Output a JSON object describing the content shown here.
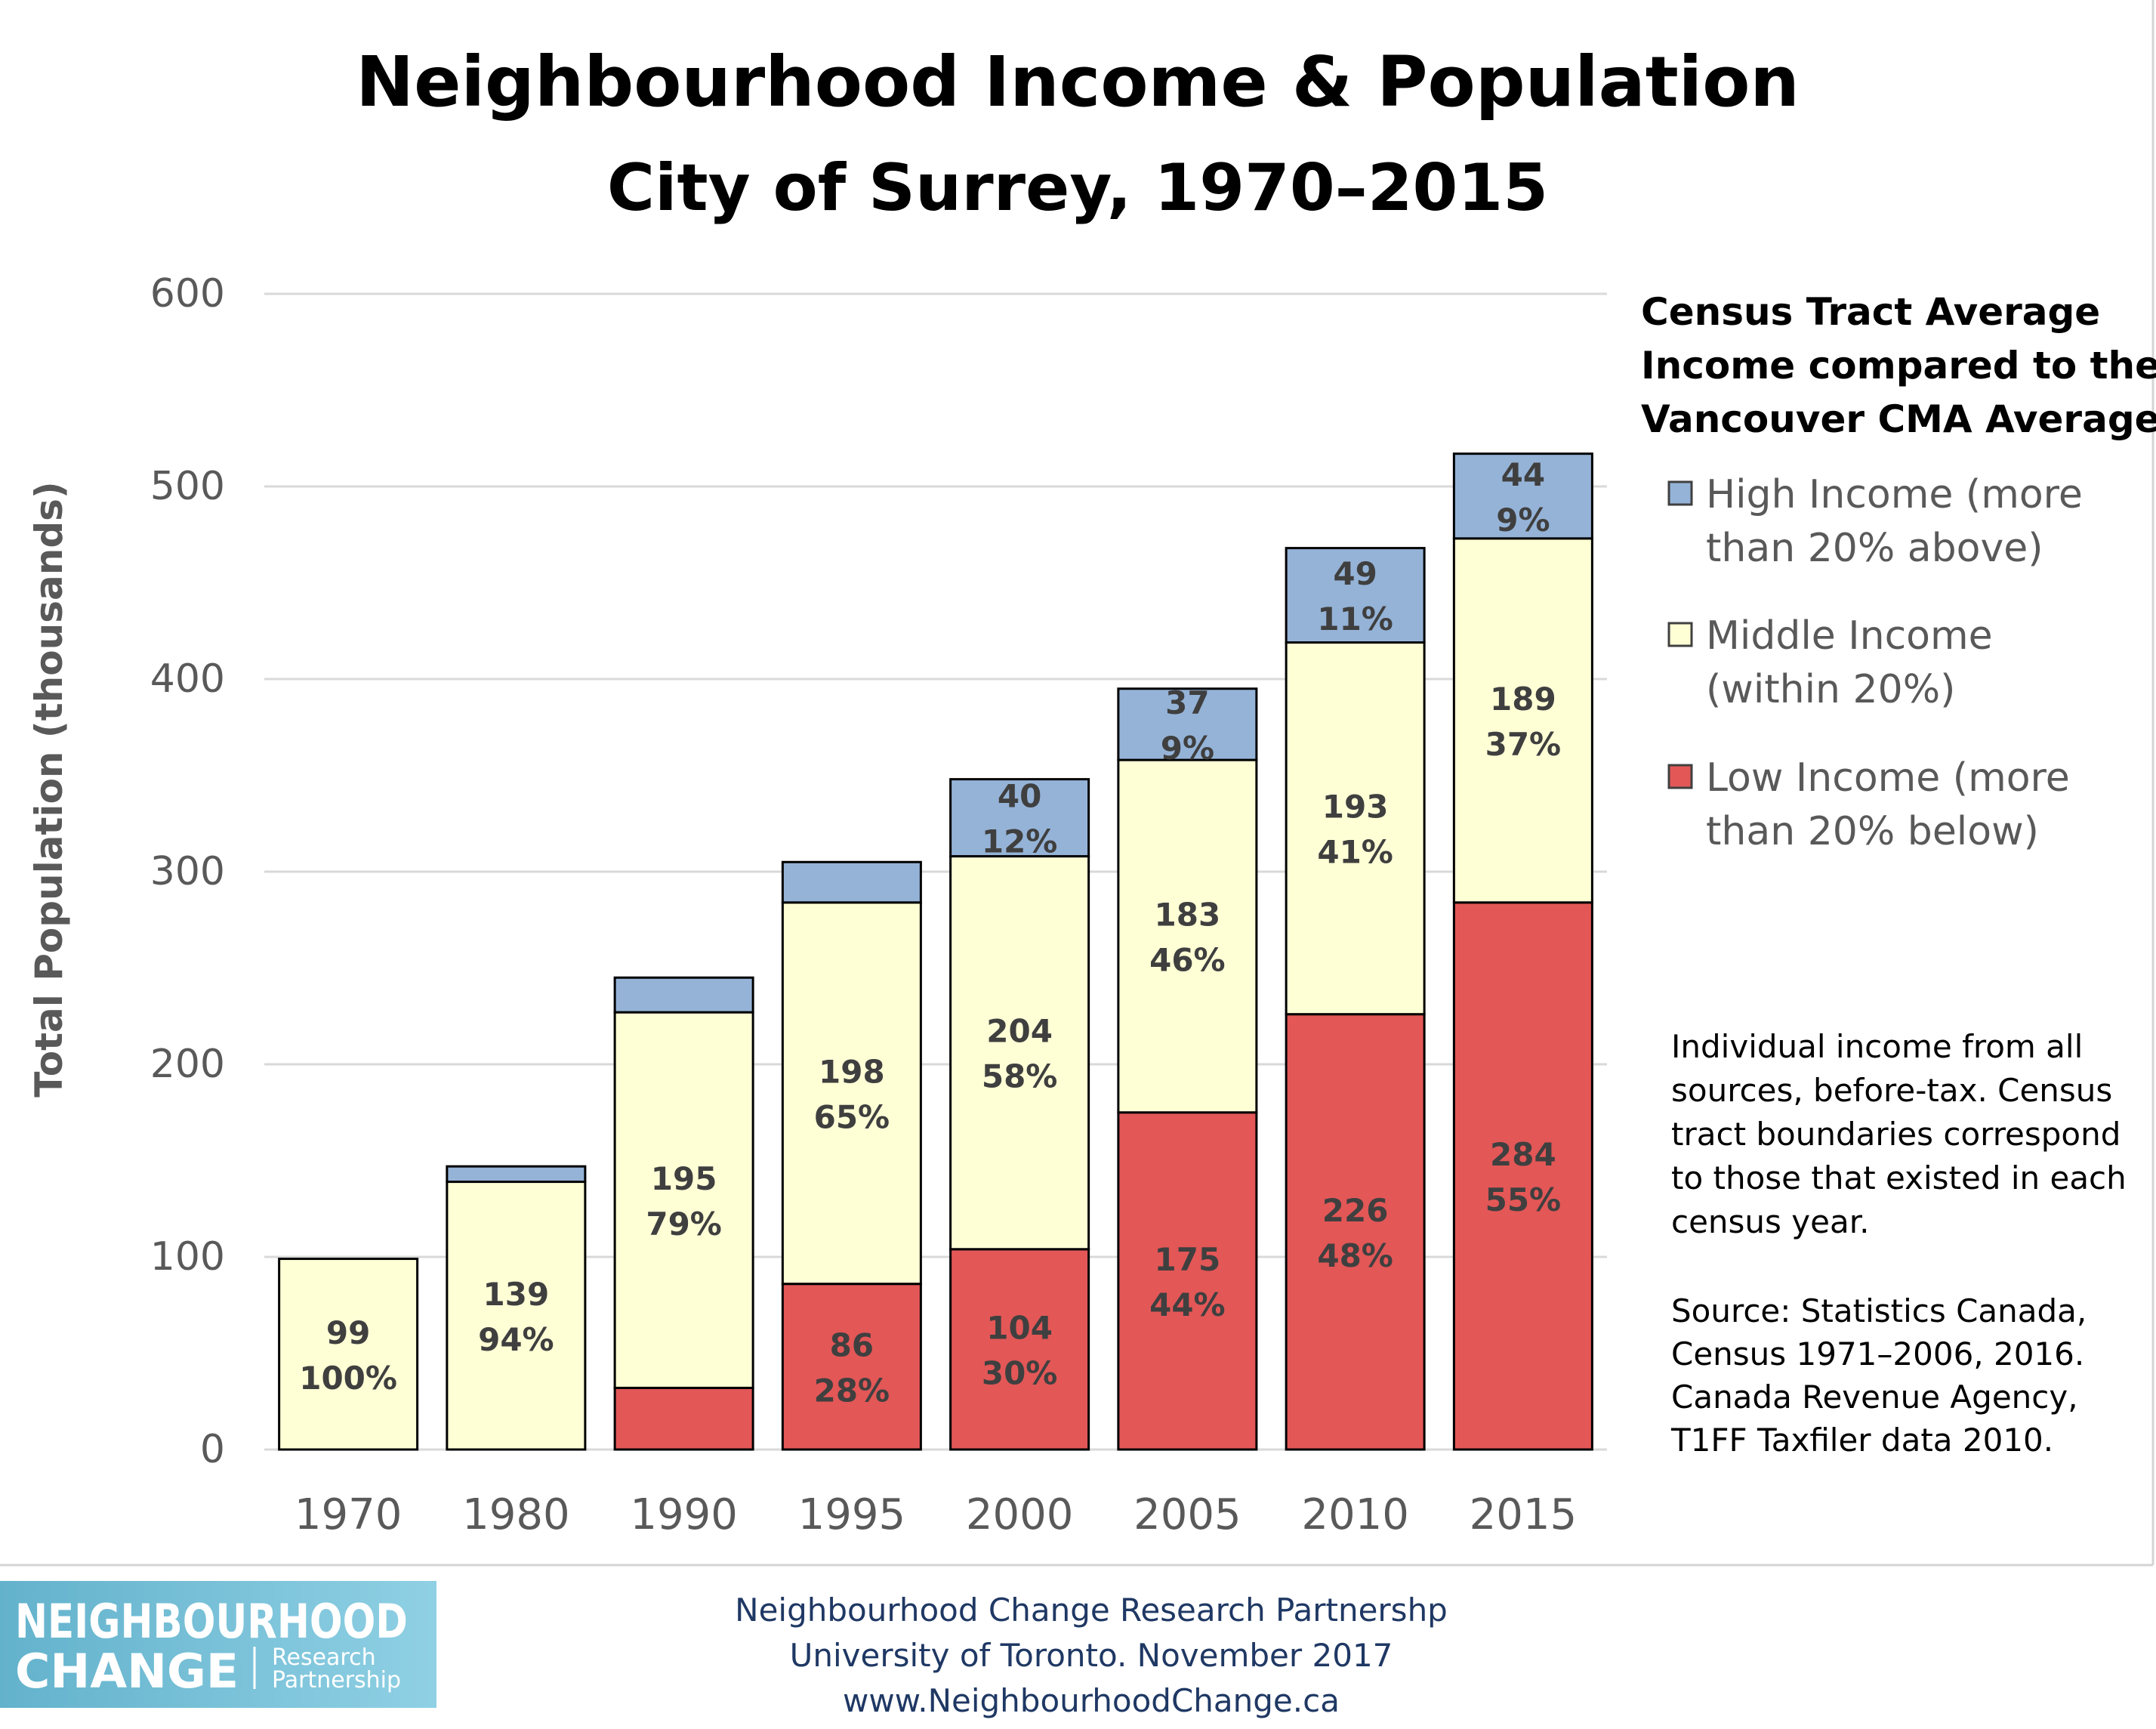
{
  "chart_data": {
    "type": "bar",
    "stacked": true,
    "title": "Neighbourhood Income & Population",
    "subtitle": "City of Surrey, 1970–2015",
    "ylabel": "Total Population (thousands)",
    "xlabel": "",
    "ylim": [
      0,
      600
    ],
    "yticks": [
      0,
      100,
      200,
      300,
      400,
      500,
      600
    ],
    "grid": true,
    "categories": [
      "1970",
      "1980",
      "1990",
      "1995",
      "2000",
      "2005",
      "2010",
      "2015"
    ],
    "series": [
      {
        "name": "Low Income (more than 20% below)",
        "color": "#e35757",
        "values": [
          0,
          0,
          32,
          86,
          104,
          175,
          226,
          284
        ],
        "labels": [
          null,
          null,
          null,
          "86\n28%",
          "104\n30%",
          "175\n44%",
          "226\n48%",
          "284\n55%"
        ]
      },
      {
        "name": "Middle Income (within 20%)",
        "color": "#ffffd6",
        "values": [
          99,
          139,
          195,
          198,
          204,
          183,
          193,
          189
        ],
        "labels": [
          "99\n100%",
          "139\n94%",
          "195\n79%",
          "198\n65%",
          "204\n58%",
          "183\n46%",
          "193\n41%",
          "189\n37%"
        ]
      },
      {
        "name": "High Income (more than 20% above)",
        "color": "#95b3d7",
        "values": [
          0,
          8,
          18,
          21,
          40,
          37,
          49,
          44
        ],
        "labels": [
          null,
          null,
          null,
          null,
          "40\n12%",
          "37\n9%",
          "49\n11%",
          "44\n9%"
        ]
      }
    ],
    "legend": {
      "title_lines": [
        "Census Tract Average",
        "Income compared to the",
        "Vancouver CMA Average"
      ],
      "placement": "right",
      "items": [
        {
          "color": "#95b3d7",
          "lines": [
            "High Income (more",
            "than 20% above)"
          ]
        },
        {
          "color": "#ffffd6",
          "lines": [
            "Middle Income",
            "(within 20%)"
          ]
        },
        {
          "color": "#e35757",
          "lines": [
            "Low Income (more",
            "than 20% below)"
          ]
        }
      ]
    }
  },
  "notes": {
    "method_lines": [
      "Individual income from all",
      "sources, before-tax. Census",
      "tract boundaries correspond",
      "to those that existed in each",
      "census year."
    ],
    "source_lines": [
      "Source: Statistics Canada,",
      "Census 1971–2006, 2016.",
      "Canada Revenue Agency,",
      "T1FF Taxfiler data 2010."
    ]
  },
  "footer": {
    "lines": [
      "Neighbourhood Change Research Partnershp",
      "University of Toronto. November 2017",
      "www.NeighbourhoodChange.ca"
    ]
  },
  "logo": {
    "line1": "NEIGHBOURHOOD",
    "line2": "CHANGE",
    "sub1": "Research",
    "sub2": "Partnership",
    "colors": {
      "left": "#63b2cc",
      "right": "#8fd0e4"
    }
  }
}
